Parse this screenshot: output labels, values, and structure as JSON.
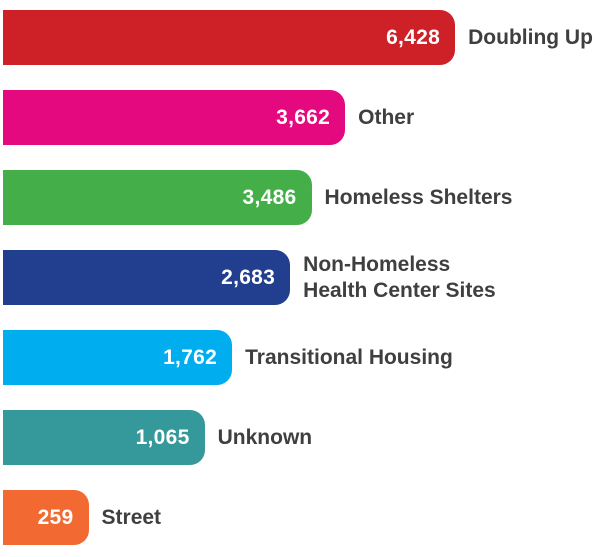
{
  "chart_data": {
    "type": "bar",
    "orientation": "horizontal",
    "title": "",
    "xlabel": "",
    "ylabel": "",
    "grid": false,
    "legend": "none",
    "x_range": [
      0,
      6428
    ],
    "categories": [
      "Doubling Up",
      "Other",
      "Homeless Shelters",
      "Non-Homeless Health Center Sites",
      "Transitional Housing",
      "Unknown",
      "Street"
    ],
    "values": [
      6428,
      3662,
      3486,
      2683,
      1762,
      1065,
      259
    ],
    "value_label_position": "inside-end",
    "category_label_position": "outside-end",
    "value_text_color": "#FFFFFF",
    "label_text_color": "#3F3F3F",
    "rows": [
      {
        "label": "Doubling Up",
        "value": 6428,
        "value_label": "6,428",
        "color": "#CD2027",
        "width_pct": 74
      },
      {
        "label": "Other",
        "value": 3662,
        "value_label": "3,662",
        "color": "#E5097F",
        "width_pct": 56
      },
      {
        "label": "Homeless Shelters",
        "value": 3486,
        "value_label": "3,486",
        "color": "#44AF49",
        "width_pct": 50.5
      },
      {
        "label": "Non-Homeless\nHealth Center Sites",
        "value": 2683,
        "value_label": "2,683",
        "color": "#213E8F",
        "width_pct": 47
      },
      {
        "label": "Transitional Housing",
        "value": 1762,
        "value_label": "1,762",
        "color": "#00AEEF",
        "width_pct": 37.5
      },
      {
        "label": "Unknown",
        "value": 1065,
        "value_label": "1,065",
        "color": "#35989B",
        "width_pct": 33
      },
      {
        "label": "Street",
        "value": 259,
        "value_label": "259",
        "color": "#F26A32",
        "width_pct": 14
      }
    ]
  }
}
